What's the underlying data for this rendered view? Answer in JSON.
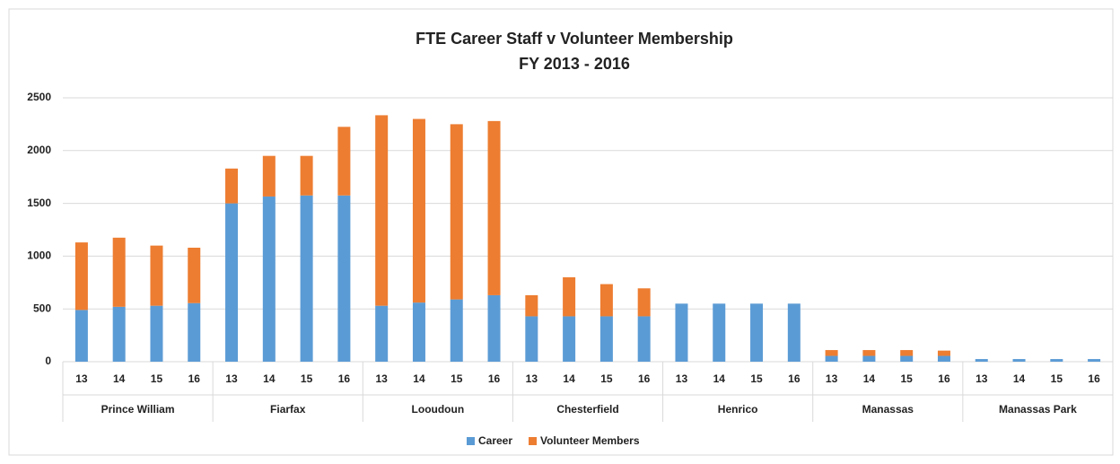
{
  "chart_data": {
    "type": "stacked_bar",
    "title": "FTE Career Staff v Volunteer Membership",
    "subtitle": "FY 2013 - 2016",
    "categories": [
      "13",
      "14",
      "15",
      "16",
      "13",
      "14",
      "15",
      "16",
      "13",
      "14",
      "15",
      "16",
      "13",
      "14",
      "15",
      "16",
      "13",
      "14",
      "15",
      "16",
      "13",
      "14",
      "15",
      "16",
      "13",
      "14",
      "15",
      "16"
    ],
    "groups": [
      "Prince William",
      "Fiarfax",
      "Looudoun",
      "Chesterfield",
      "Henrico",
      "Manassas",
      "Manassas Park"
    ],
    "series": [
      {
        "name": "Career",
        "color": "#5b9bd5",
        "values": [
          490,
          520,
          530,
          555,
          1500,
          1565,
          1575,
          1575,
          530,
          560,
          590,
          630,
          430,
          430,
          430,
          430,
          550,
          550,
          550,
          550,
          55,
          55,
          55,
          55,
          25,
          25,
          25,
          25
        ]
      },
      {
        "name": "Volunteer Members",
        "color": "#ed7d31",
        "values": [
          640,
          655,
          570,
          525,
          330,
          385,
          375,
          650,
          1805,
          1740,
          1660,
          1650,
          200,
          370,
          305,
          265,
          0,
          0,
          0,
          0,
          55,
          55,
          55,
          50,
          0,
          0,
          0,
          0
        ]
      }
    ],
    "ylim": [
      0,
      2500
    ],
    "yticks": [
      0,
      500,
      1000,
      1500,
      2000,
      2500
    ],
    "grid": true,
    "legend": "bottom"
  }
}
